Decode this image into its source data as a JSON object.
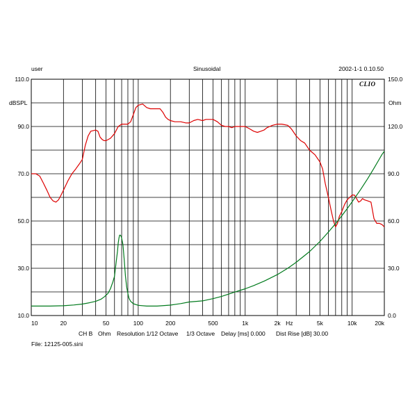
{
  "header": {
    "left": "user",
    "center": "Sinusoidal",
    "right": "2002-1-1 0.10.50"
  },
  "logo_text": "CLIO",
  "footer": {
    "channel": "CH B",
    "unit": "Ohm",
    "resolution": "Resolution 1/12 Octave",
    "octave": "1/3 Octave",
    "delay": "Delay [ms] 0.000",
    "dist_rise": "Dist Rise [dB] 30.00",
    "file": "File: 12125-005.sini"
  },
  "chart_data": {
    "type": "line",
    "x_scale": "log",
    "xlim": [
      10,
      20000
    ],
    "x_ticks": [
      10,
      20,
      50,
      100,
      200,
      500,
      1000,
      2000,
      5000,
      10000,
      20000
    ],
    "x_tick_labels": [
      "10",
      "20",
      "50",
      "100",
      "200",
      "500",
      "1k",
      "2k",
      "5k",
      "10k",
      "20k"
    ],
    "x_unit": "Hz",
    "y_left": {
      "label": "dBSPL",
      "range": [
        10,
        110
      ],
      "ticks": [
        10,
        30,
        50,
        70,
        90,
        110
      ],
      "tick_labels": [
        "10.0",
        "30.0",
        "50.0",
        "70.0",
        "90.0",
        "110.0"
      ]
    },
    "y_right": {
      "label": "Ohm",
      "range": [
        0,
        150
      ],
      "ticks": [
        0,
        30,
        60,
        90,
        120,
        150
      ],
      "tick_labels": [
        "0.0",
        "30.0",
        "60.0",
        "90.0",
        "120.0",
        "150.0"
      ]
    },
    "grid": true,
    "series": [
      {
        "axis": "left",
        "color": "#dd0000",
        "points": [
          [
            10,
            70
          ],
          [
            11,
            70
          ],
          [
            12,
            69
          ],
          [
            13,
            66
          ],
          [
            14,
            63
          ],
          [
            15,
            60
          ],
          [
            16,
            58.5
          ],
          [
            17,
            58
          ],
          [
            18,
            59
          ],
          [
            19,
            61
          ],
          [
            20,
            63
          ],
          [
            22,
            67
          ],
          [
            24,
            70
          ],
          [
            26,
            72
          ],
          [
            28,
            74
          ],
          [
            30,
            76
          ],
          [
            32,
            82
          ],
          [
            34,
            86
          ],
          [
            36,
            88
          ],
          [
            40,
            88.5
          ],
          [
            42,
            88
          ],
          [
            44,
            85.5
          ],
          [
            46,
            84.5
          ],
          [
            48,
            84
          ],
          [
            50,
            84
          ],
          [
            55,
            85
          ],
          [
            60,
            87
          ],
          [
            65,
            90
          ],
          [
            70,
            91
          ],
          [
            75,
            91
          ],
          [
            80,
            91
          ],
          [
            85,
            92
          ],
          [
            90,
            95
          ],
          [
            95,
            98
          ],
          [
            100,
            99
          ],
          [
            110,
            99.5
          ],
          [
            120,
            98
          ],
          [
            130,
            97.5
          ],
          [
            140,
            97.5
          ],
          [
            150,
            97.5
          ],
          [
            160,
            97.5
          ],
          [
            170,
            96
          ],
          [
            180,
            94
          ],
          [
            190,
            93
          ],
          [
            200,
            92.5
          ],
          [
            220,
            92
          ],
          [
            250,
            92
          ],
          [
            280,
            91.5
          ],
          [
            300,
            91.5
          ],
          [
            330,
            92.5
          ],
          [
            360,
            93
          ],
          [
            400,
            92.5
          ],
          [
            430,
            93
          ],
          [
            460,
            93
          ],
          [
            500,
            93
          ],
          [
            550,
            92
          ],
          [
            600,
            90.5
          ],
          [
            650,
            90
          ],
          [
            700,
            90
          ],
          [
            750,
            89.5
          ],
          [
            800,
            90
          ],
          [
            850,
            90
          ],
          [
            900,
            90
          ],
          [
            950,
            90
          ],
          [
            1000,
            90
          ],
          [
            1100,
            89
          ],
          [
            1200,
            88
          ],
          [
            1300,
            87.5
          ],
          [
            1400,
            88
          ],
          [
            1500,
            88.5
          ],
          [
            1600,
            89.5
          ],
          [
            1800,
            90.5
          ],
          [
            2000,
            91
          ],
          [
            2200,
            91
          ],
          [
            2500,
            90.5
          ],
          [
            2700,
            89
          ],
          [
            3000,
            86
          ],
          [
            3300,
            84
          ],
          [
            3600,
            83
          ],
          [
            4000,
            80
          ],
          [
            4500,
            78
          ],
          [
            5000,
            75
          ],
          [
            5300,
            72
          ],
          [
            5600,
            66
          ],
          [
            6000,
            60
          ],
          [
            6400,
            54
          ],
          [
            6700,
            50
          ],
          [
            7000,
            47.5
          ],
          [
            7300,
            49
          ],
          [
            7600,
            52
          ],
          [
            8000,
            54
          ],
          [
            8500,
            57
          ],
          [
            9000,
            59
          ],
          [
            9500,
            60
          ],
          [
            10000,
            61
          ],
          [
            10500,
            61
          ],
          [
            11000,
            59.5
          ],
          [
            11500,
            58
          ],
          [
            12000,
            58.5
          ],
          [
            12500,
            59.5
          ],
          [
            13000,
            59
          ],
          [
            14000,
            58.5
          ],
          [
            15000,
            58
          ],
          [
            16000,
            51
          ],
          [
            17000,
            49
          ],
          [
            18000,
            49
          ],
          [
            19000,
            48.5
          ],
          [
            20000,
            47.5
          ]
        ]
      },
      {
        "axis": "right",
        "color": "#007a1c",
        "points": [
          [
            10,
            6
          ],
          [
            12,
            6
          ],
          [
            15,
            6
          ],
          [
            20,
            6.2
          ],
          [
            25,
            6.7
          ],
          [
            30,
            7.3
          ],
          [
            35,
            8.1
          ],
          [
            40,
            9
          ],
          [
            45,
            10.4
          ],
          [
            48,
            11.8
          ],
          [
            52,
            14
          ],
          [
            55,
            17
          ],
          [
            58,
            21.5
          ],
          [
            60,
            25
          ],
          [
            62,
            33
          ],
          [
            64,
            41
          ],
          [
            65,
            46
          ],
          [
            66,
            49
          ],
          [
            67,
            51
          ],
          [
            68,
            51
          ],
          [
            69,
            50.5
          ],
          [
            70,
            49
          ],
          [
            71,
            47
          ],
          [
            72,
            45
          ],
          [
            74,
            35
          ],
          [
            76,
            25
          ],
          [
            78,
            18
          ],
          [
            80,
            14
          ],
          [
            82,
            11
          ],
          [
            85,
            9
          ],
          [
            90,
            7.5
          ],
          [
            100,
            6.5
          ],
          [
            120,
            6
          ],
          [
            150,
            6
          ],
          [
            200,
            6.6
          ],
          [
            250,
            7.6
          ],
          [
            300,
            8.6
          ],
          [
            400,
            9.3
          ],
          [
            500,
            10.7
          ],
          [
            600,
            12.1
          ],
          [
            700,
            13.6
          ],
          [
            800,
            14.9
          ],
          [
            1000,
            17
          ],
          [
            1200,
            19
          ],
          [
            1500,
            21.8
          ],
          [
            2000,
            26
          ],
          [
            2500,
            30
          ],
          [
            3000,
            33.8
          ],
          [
            4000,
            40.6
          ],
          [
            5000,
            47
          ],
          [
            6000,
            53
          ],
          [
            7000,
            58.3
          ],
          [
            8000,
            63.3
          ],
          [
            9000,
            67.9
          ],
          [
            10000,
            72.2
          ],
          [
            12000,
            80
          ],
          [
            14000,
            87
          ],
          [
            16000,
            93.5
          ],
          [
            18000,
            99.5
          ],
          [
            19000,
            102.2
          ],
          [
            20000,
            104.3
          ]
        ]
      }
    ]
  }
}
